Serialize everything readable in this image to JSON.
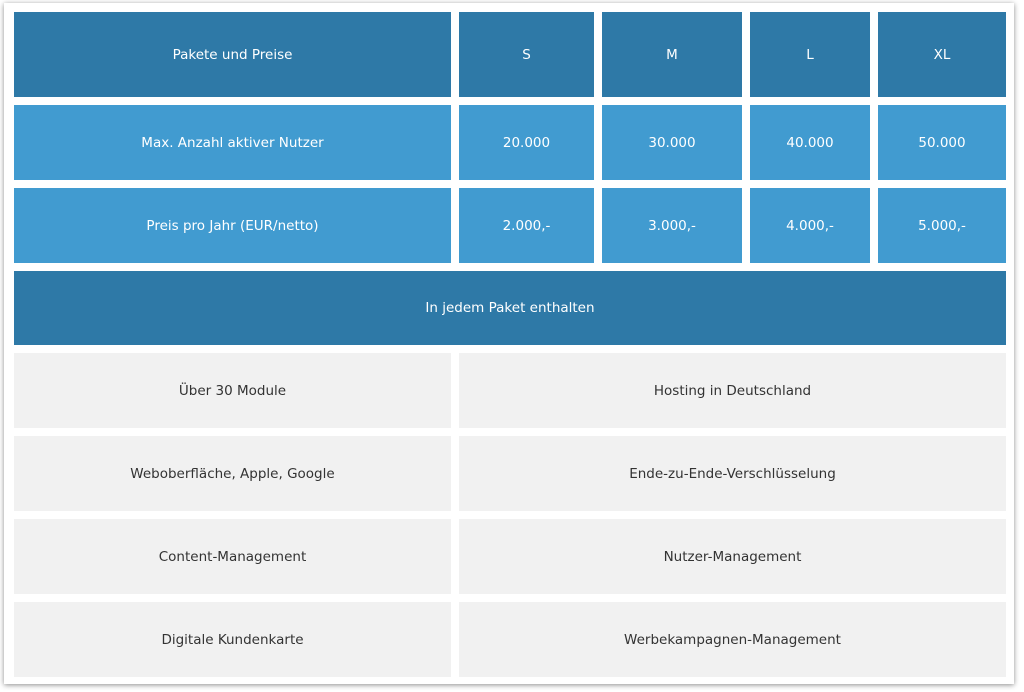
{
  "header": {
    "title": "Pakete und Preise",
    "packages": [
      "S",
      "M",
      "L",
      "XL"
    ]
  },
  "rows": [
    {
      "label": "Max. Anzahl aktiver Nutzer",
      "values": [
        "20.000",
        "30.000",
        "40.000",
        "50.000"
      ]
    },
    {
      "label": "Preis pro Jahr (EUR/netto)",
      "values": [
        "2.000,-",
        "3.000,-",
        "4.000,-",
        "5.000,-"
      ]
    }
  ],
  "included": {
    "title": "In jedem Paket enthalten",
    "features": [
      [
        "Über 30 Module",
        "Hosting in Deutschland"
      ],
      [
        "Weboberfläche, Apple, Google",
        "Ende-zu-Ende-Verschlüsselung"
      ],
      [
        "Content-Management",
        "Nutzer-Management"
      ],
      [
        "Digitale Kundenkarte",
        "Werbekampagnen-Management"
      ]
    ]
  },
  "colors": {
    "header_bg": "#2e79a7",
    "row_bg": "#419bd0",
    "feature_bg": "#f1f1f1",
    "header_text": "#ffffff",
    "feature_text": "#333333"
  }
}
